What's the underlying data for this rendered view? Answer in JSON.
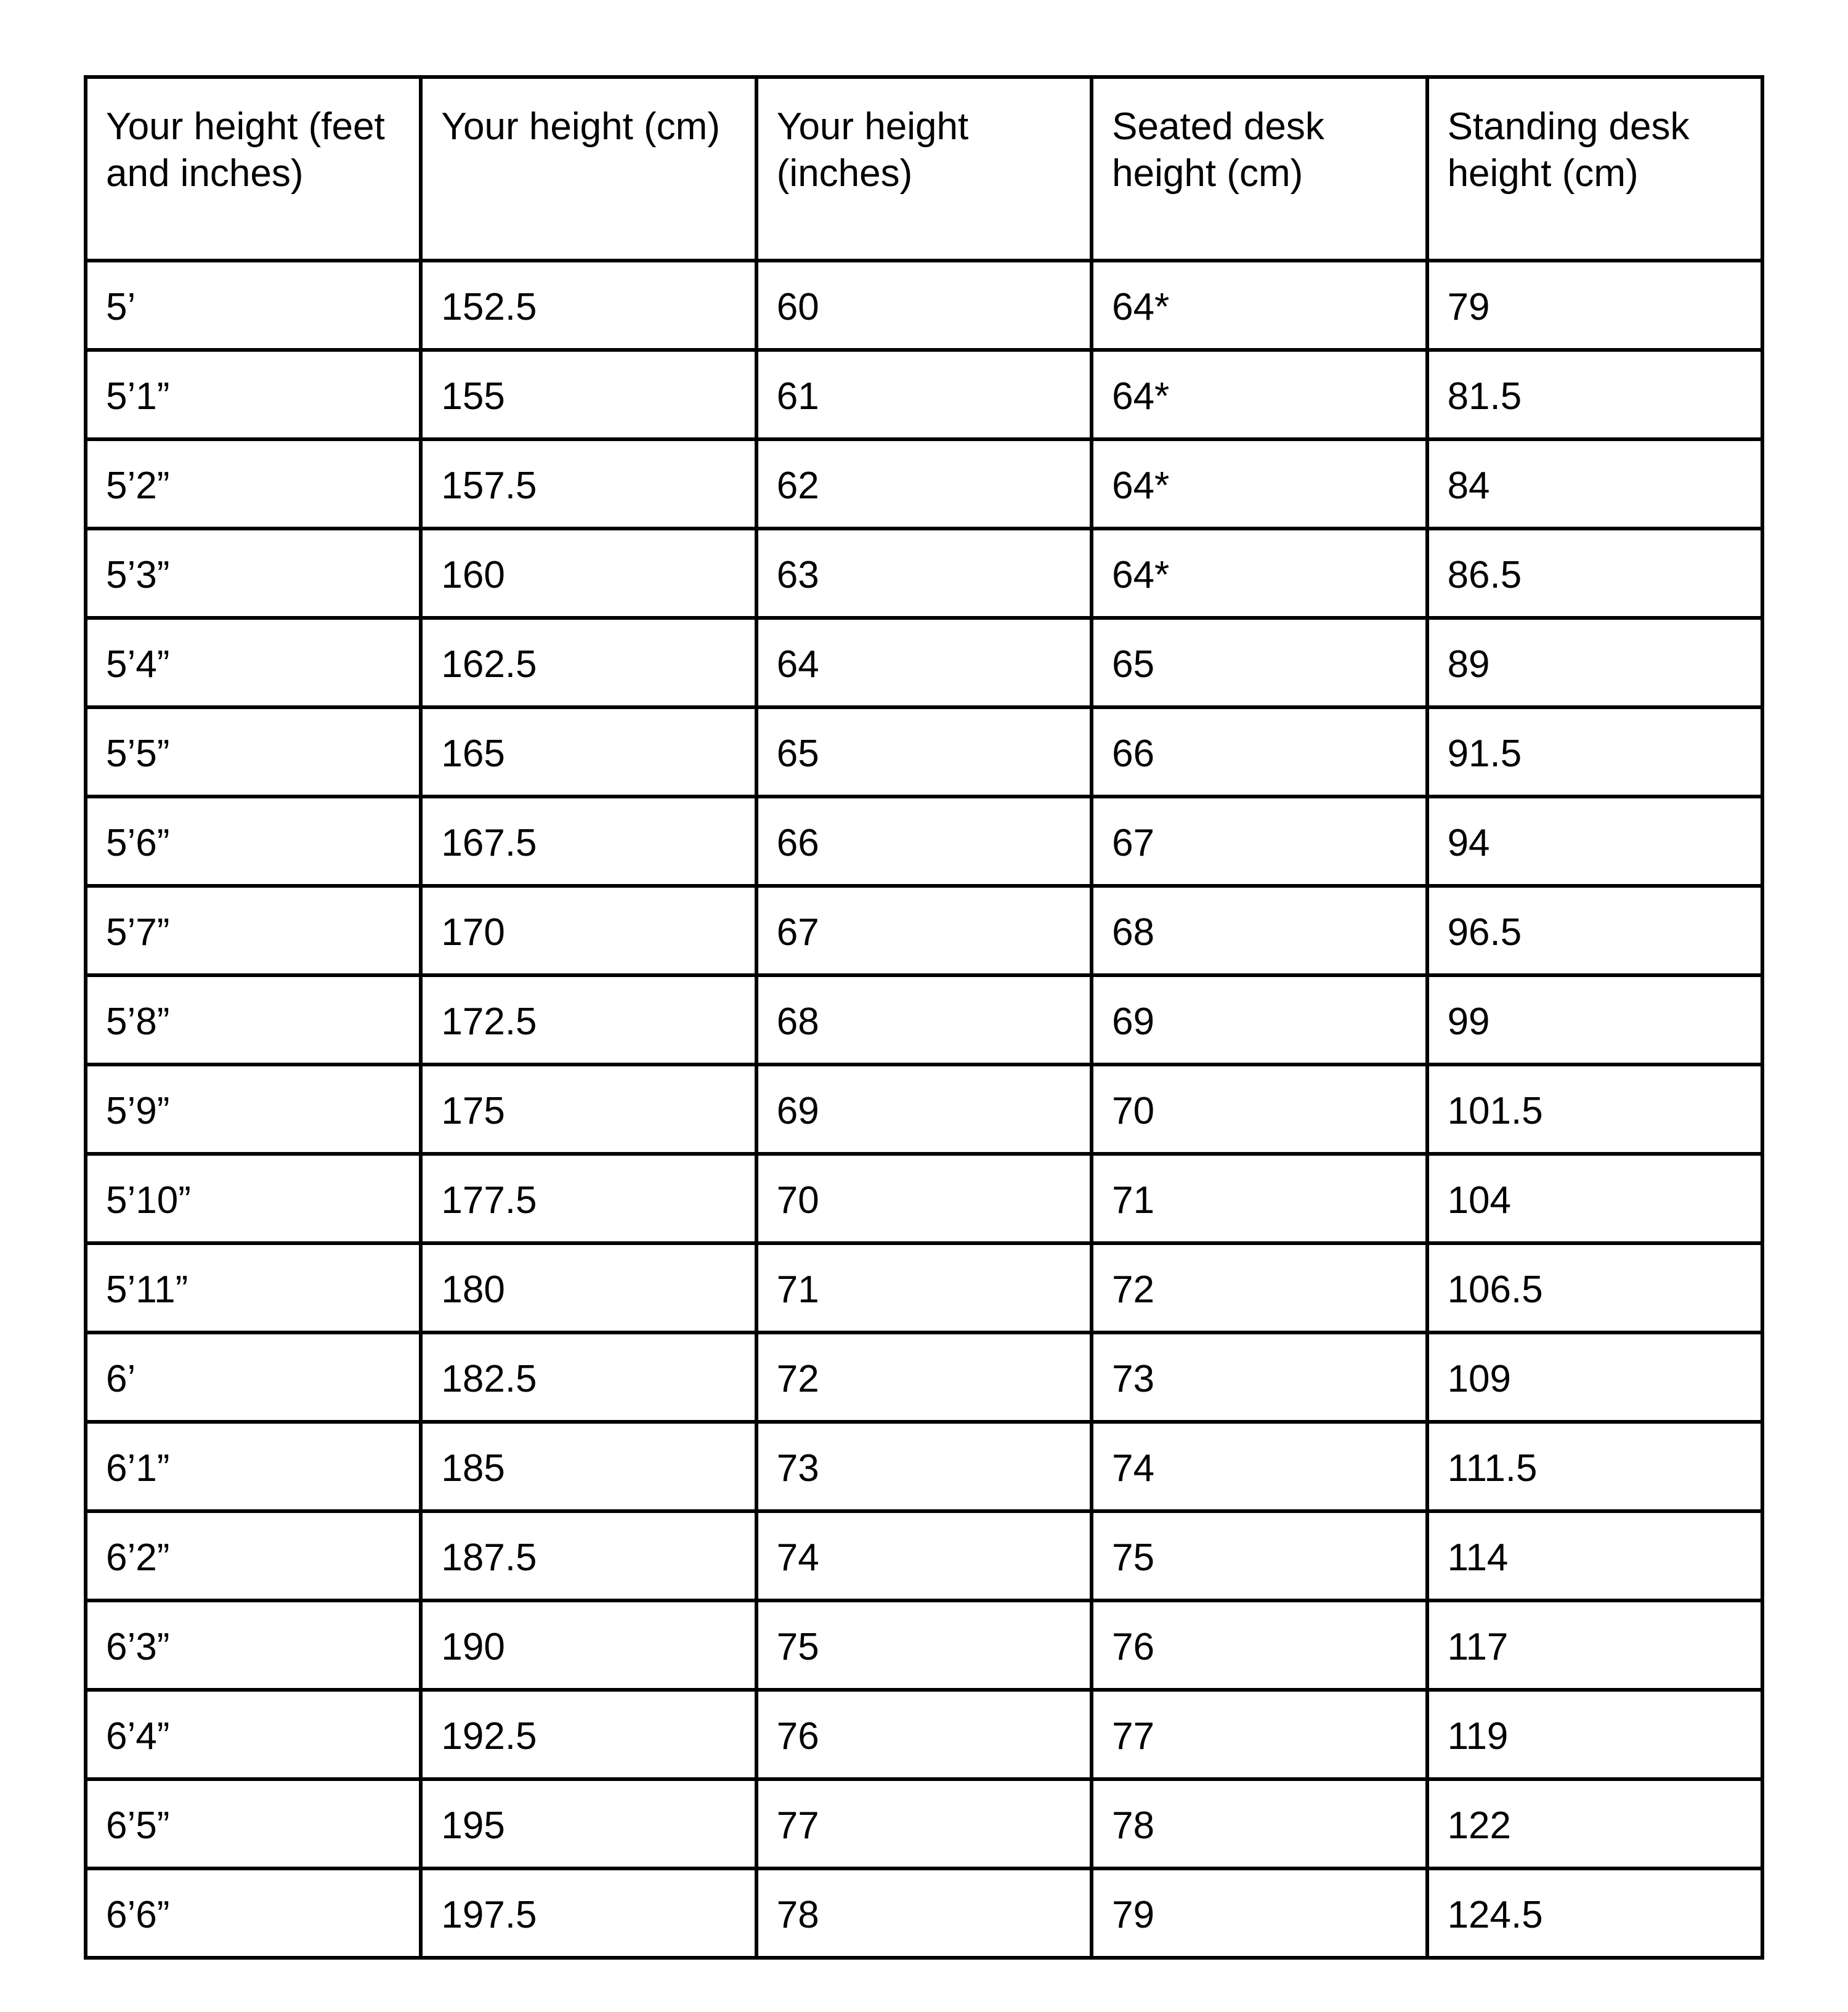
{
  "table": {
    "headers": [
      "Your height (feet and inches)",
      "Your height (cm)",
      "Your height (inches)",
      "Seated desk height (cm)",
      "Standing desk height (cm)"
    ],
    "rows": [
      [
        "5’",
        "152.5",
        "60",
        "64*",
        "79"
      ],
      [
        "5’1”",
        "155",
        "61",
        "64*",
        "81.5"
      ],
      [
        "5’2”",
        "157.5",
        "62",
        "64*",
        "84"
      ],
      [
        "5’3”",
        "160",
        "63",
        "64*",
        "86.5"
      ],
      [
        "5’4”",
        "162.5",
        "64",
        "65",
        "89"
      ],
      [
        "5’5”",
        "165",
        "65",
        "66",
        "91.5"
      ],
      [
        "5’6”",
        "167.5",
        "66",
        "67",
        "94"
      ],
      [
        "5’7”",
        "170",
        "67",
        "68",
        "96.5"
      ],
      [
        "5’8”",
        "172.5",
        "68",
        "69",
        "99"
      ],
      [
        "5’9”",
        "175",
        "69",
        "70",
        "101.5"
      ],
      [
        "5’10”",
        "177.5",
        "70",
        "71",
        "104"
      ],
      [
        "5’11”",
        "180",
        "71",
        "72",
        "106.5"
      ],
      [
        "6’",
        "182.5",
        "72",
        "73",
        "109"
      ],
      [
        "6’1”",
        "185",
        "73",
        "74",
        "111.5"
      ],
      [
        "6’2”",
        "187.5",
        "74",
        "75",
        "114"
      ],
      [
        "6’3”",
        "190",
        "75",
        "76",
        "117"
      ],
      [
        "6’4”",
        "192.5",
        "76",
        "77",
        "119"
      ],
      [
        "6’5”",
        "195",
        "77",
        "78",
        "122"
      ],
      [
        "6’6”",
        "197.5",
        "78",
        "79",
        "124.5"
      ]
    ]
  }
}
